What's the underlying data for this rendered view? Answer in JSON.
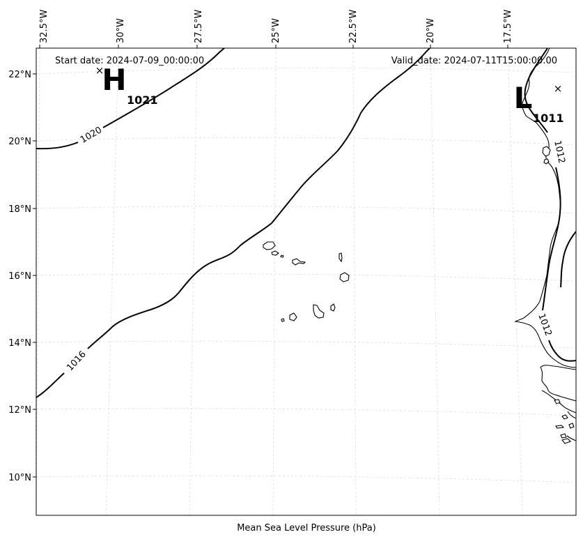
{
  "map": {
    "start_date": "Start date: 2024-07-09_00:00:00",
    "valid_date": "Valid_date: 2024-07-11T15:00:00.00",
    "footer_label": "Mean Sea Level Pressure (hPa)",
    "lon_ticks": [
      "32.5°W",
      "30°W",
      "27.5°W",
      "25°W",
      "22.5°W",
      "20°W",
      "17.5°W"
    ],
    "lat_ticks": [
      "22°N",
      "20°N",
      "18°N",
      "16°N",
      "14°N",
      "12°N",
      "10°N"
    ],
    "high_center": {
      "letter": "H",
      "value": "1021",
      "marker": "×"
    },
    "low_center": {
      "letter": "L",
      "value": "1011",
      "marker": "×"
    },
    "isobar_labels": {
      "i1020": "1020",
      "i1016": "1016",
      "i1012_north": "1012",
      "i1012_south": "1012"
    }
  }
}
